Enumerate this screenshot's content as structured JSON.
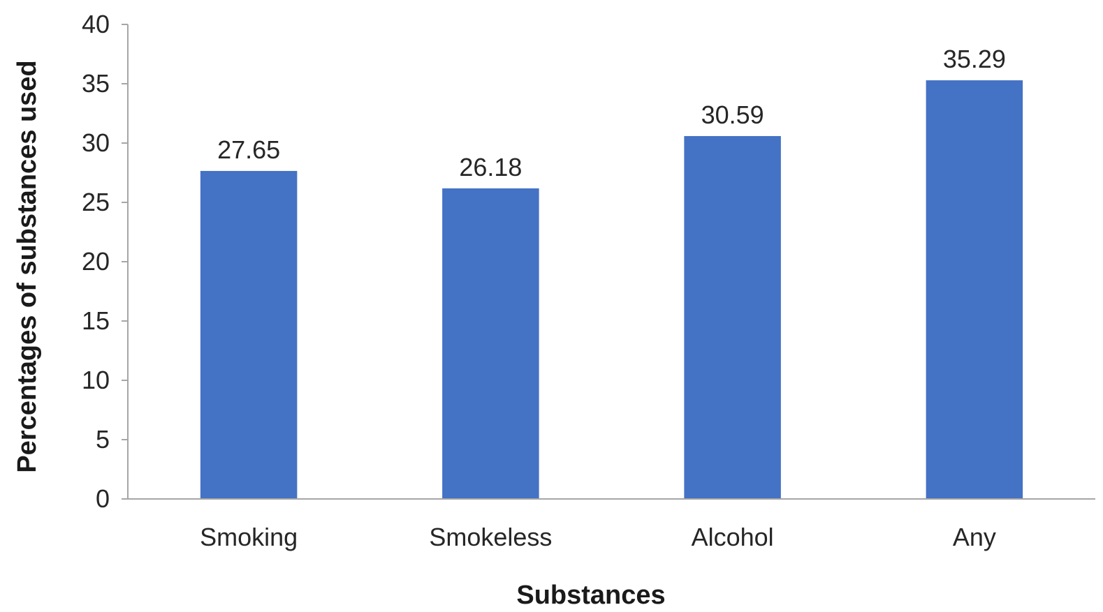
{
  "chart_data": {
    "type": "bar",
    "categories": [
      "Smoking",
      "Smokeless",
      "Alcohol",
      "Any"
    ],
    "values": [
      27.65,
      26.18,
      30.59,
      35.29
    ],
    "data_labels": [
      "27.65",
      "26.18",
      "30.59",
      "35.29"
    ],
    "xlabel": "Substances",
    "ylabel": "Percentages of substances used",
    "ylim": [
      0,
      40
    ],
    "yticks": [
      0,
      5,
      10,
      15,
      20,
      25,
      30,
      35,
      40
    ],
    "bar_color": "#4472C4",
    "grid": false,
    "legend": "none"
  }
}
